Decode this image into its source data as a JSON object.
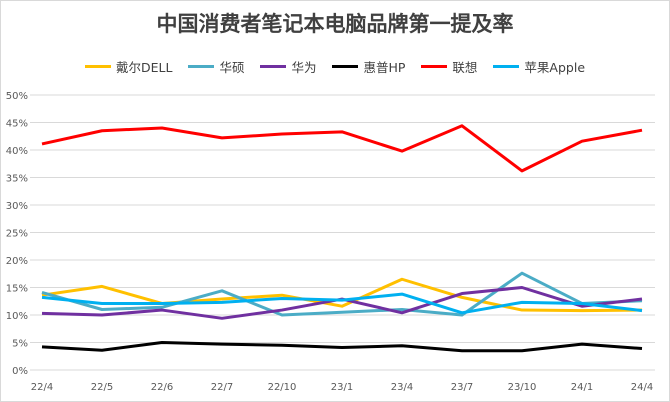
{
  "chart_data": {
    "type": "line",
    "title": "中国消费者笔记本电脑品牌第一提及率",
    "xlabel": "",
    "ylabel": "",
    "categories": [
      "22/4",
      "22/5",
      "22/6",
      "22/7",
      "22/10",
      "23/1",
      "23/4",
      "23/7",
      "23/10",
      "24/1",
      "24/4"
    ],
    "ylim": [
      0,
      50
    ],
    "yticks": [
      "0%",
      "5%",
      "10%",
      "15%",
      "20%",
      "25%",
      "30%",
      "35%",
      "40%",
      "45%",
      "50%"
    ],
    "grid": true,
    "legend_position": "top",
    "series": [
      {
        "name": "戴尔DELL",
        "color": "#ffc000",
        "values": [
          13.6,
          15.2,
          12.1,
          12.9,
          13.6,
          11.6,
          16.5,
          13.2,
          10.9,
          10.8,
          10.9
        ]
      },
      {
        "name": "华硕",
        "color": "#4bacc6",
        "values": [
          14.1,
          11.0,
          11.4,
          14.4,
          10.0,
          10.5,
          11.0,
          10.0,
          17.6,
          12.1,
          12.6
        ]
      },
      {
        "name": "华为",
        "color": "#7030a0",
        "values": [
          10.3,
          10.0,
          10.9,
          9.4,
          10.9,
          12.9,
          10.4,
          13.9,
          15.0,
          11.6,
          12.9
        ]
      },
      {
        "name": "惠普HP",
        "color": "#000000",
        "values": [
          4.2,
          3.6,
          5.0,
          4.7,
          4.5,
          4.1,
          4.4,
          3.5,
          3.5,
          4.7,
          3.9
        ]
      },
      {
        "name": "联想",
        "color": "#ff0000",
        "values": [
          41.1,
          43.5,
          44.0,
          42.2,
          42.9,
          43.3,
          39.8,
          44.4,
          36.2,
          41.6,
          43.6
        ]
      },
      {
        "name": "苹果Apple",
        "color": "#00b0f0",
        "values": [
          13.2,
          12.1,
          12.1,
          12.3,
          13.0,
          12.7,
          13.8,
          10.4,
          12.3,
          12.1,
          10.8
        ]
      }
    ]
  }
}
